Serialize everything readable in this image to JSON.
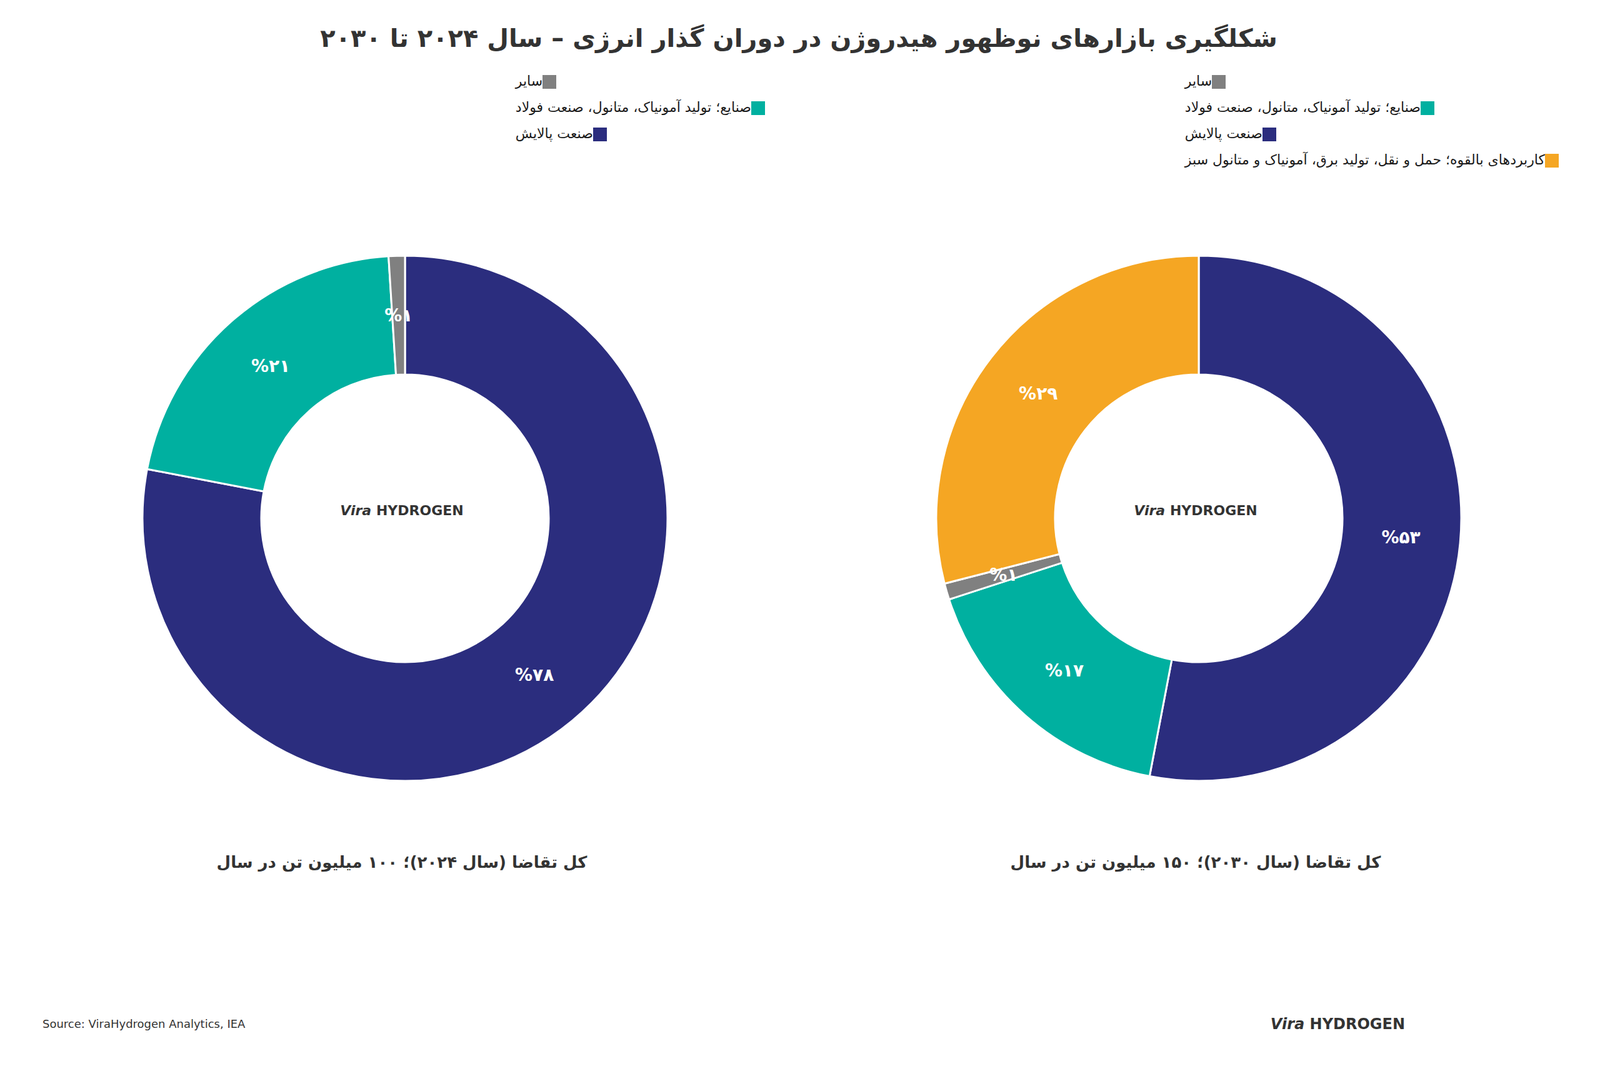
{
  "title": "شکلگیری بازار‌های نوظهور هیدروژن در دوران گذار انرژی – سال ۲۰۲۴ تا ۲۰۳۰",
  "annotations": [
    "Source: ViraHydrogen Analytics, IEA",
    "Vira",
    "HYDROGEN"
  ],
  "chart_data": [
    {
      "type": "pie",
      "subtitle": "کل تقاضا (سال ۲۰۲۴)؛ ۱۰۰ میلیون تن در سال",
      "categories": [
        "صنعت پالایش",
        "صنایع؛ تولید آمونیاک، متانول، صنعت فولاد",
        "سایر"
      ],
      "values": [
        78,
        21,
        1
      ],
      "value_labels": [
        "%۷۸",
        "%۲۱",
        "%۱"
      ],
      "colors": [
        "#2b2d7e",
        "#00b0a0",
        "#808080"
      ],
      "data_labels": true,
      "legend": "top",
      "annotations": [
        "Vira",
        "HYDROGEN"
      ]
    },
    {
      "type": "pie",
      "subtitle": "کل تقاضا (سال ۲۰۳۰)؛ ۱۵۰ میلیون تن در سال",
      "categories": [
        "صنعت پالایش",
        "صنایع؛ تولید آمونیاک، متانول، صنعت فولاد",
        "سایر",
        "کاربردهای بالقوه؛ حمل و نقل، تولید برق، آمونیاک و متانول سبز"
      ],
      "values": [
        53,
        17,
        1,
        29
      ],
      "value_labels": [
        "%۵۳",
        "%۱۷",
        "%۱",
        "%۲۹"
      ],
      "colors": [
        "#2b2d7e",
        "#00b0a0",
        "#808080",
        "#f5a623"
      ],
      "data_labels": true,
      "legend": "top",
      "annotations": [
        "Vira",
        "HYDROGEN"
      ]
    }
  ]
}
